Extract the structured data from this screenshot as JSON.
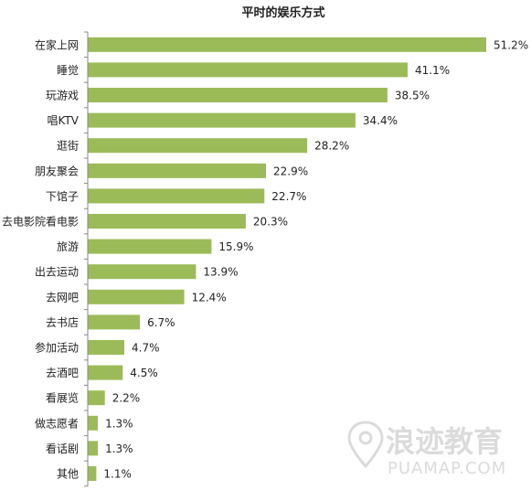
{
  "chart_data": {
    "type": "bar",
    "orientation": "horizontal",
    "title": "平时的娱乐方式",
    "xlabel": "",
    "ylabel": "",
    "xlim": [
      0,
      51.2
    ],
    "grid": false,
    "categories": [
      "在家上网",
      "睡觉",
      "玩游戏",
      "唱KTV",
      "逛街",
      "朋友聚会",
      "下馆子",
      "去电影院看电影",
      "旅游",
      "出去运动",
      "去网吧",
      "去书店",
      "参加活动",
      "去酒吧",
      "看展览",
      "做志愿者",
      "看话剧",
      "其他"
    ],
    "values": [
      51.2,
      41.1,
      38.5,
      34.4,
      28.2,
      22.9,
      22.7,
      20.3,
      15.9,
      13.9,
      12.4,
      6.7,
      4.7,
      4.5,
      2.2,
      1.3,
      1.3,
      1.1
    ],
    "value_labels": [
      "51.2%",
      "41.1%",
      "38.5%",
      "34.4%",
      "28.2%",
      "22.9%",
      "22.7%",
      "20.3%",
      "15.9%",
      "13.9%",
      "12.4%",
      "6.7%",
      "4.7%",
      "4.5%",
      "2.2%",
      "1.3%",
      "1.3%",
      "1.1%"
    ],
    "bar_color": "#9bbb59",
    "axis_color": "#888888"
  },
  "watermark": {
    "cn": "浪迹教育",
    "en": "PUAMAP.COM",
    "icon": "map-pin-icon",
    "color": "#d8d8d8"
  }
}
